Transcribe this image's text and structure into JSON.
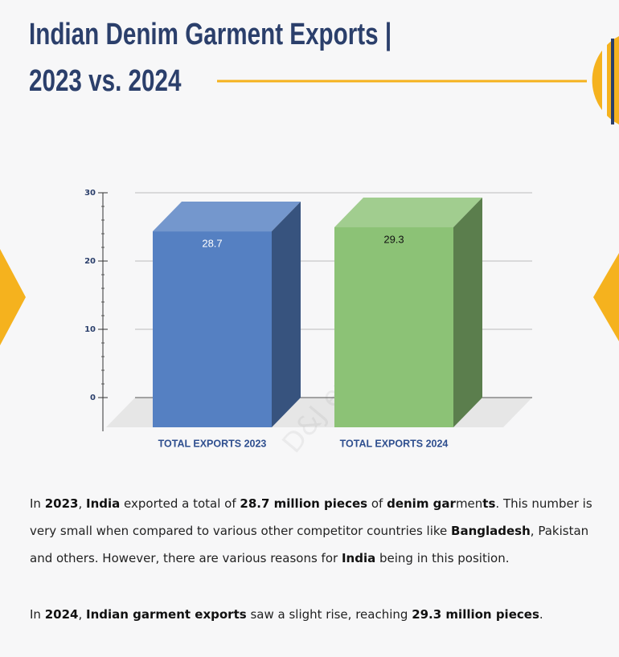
{
  "chart_data": {
    "type": "bar3d",
    "title": [
      "Indian Denim Garment Exports |",
      "2023 vs. 2024"
    ],
    "categories": [
      "TOTAL EXPORTS 2023",
      "TOTAL EXPORTS 2024"
    ],
    "values": [
      28.7,
      29.3
    ],
    "colors": [
      "#5580c2",
      "#8cc276"
    ],
    "label_colors": [
      "#ffffff",
      "#111111"
    ],
    "ylim": [
      0,
      30
    ],
    "yticks": [
      0,
      10,
      20,
      30
    ],
    "grid": true,
    "watermark": "D&J exports"
  },
  "paragraphs": [
    {
      "runs": [
        {
          "text": "In "
        },
        {
          "text": "2023",
          "bold": true
        },
        {
          "text": ", "
        },
        {
          "text": "India",
          "bold": true
        },
        {
          "text": " exported a total of "
        },
        {
          "text": "28.7 million pieces",
          "bold": true
        },
        {
          "text": " of "
        },
        {
          "text": "denim gar",
          "bold": true
        },
        {
          "text": "men"
        },
        {
          "text": "ts",
          "bold": true
        },
        {
          "text": ". This number is very small when compared to various other competitor countries like "
        },
        {
          "text": "Bangladesh",
          "bold": true
        },
        {
          "text": ", Pakistan and others. However, there are various reasons for "
        },
        {
          "text": "India",
          "bold": true
        },
        {
          "text": " being in this position."
        }
      ]
    },
    {
      "runs": [
        {
          "text": "In "
        },
        {
          "text": "2024",
          "bold": true
        },
        {
          "text": ", "
        },
        {
          "text": "Indian garment exports",
          "bold": true
        },
        {
          "text": " saw a slight rise, reaching "
        },
        {
          "text": "29.3 million pieces",
          "bold": true
        },
        {
          "text": "."
        }
      ]
    }
  ]
}
